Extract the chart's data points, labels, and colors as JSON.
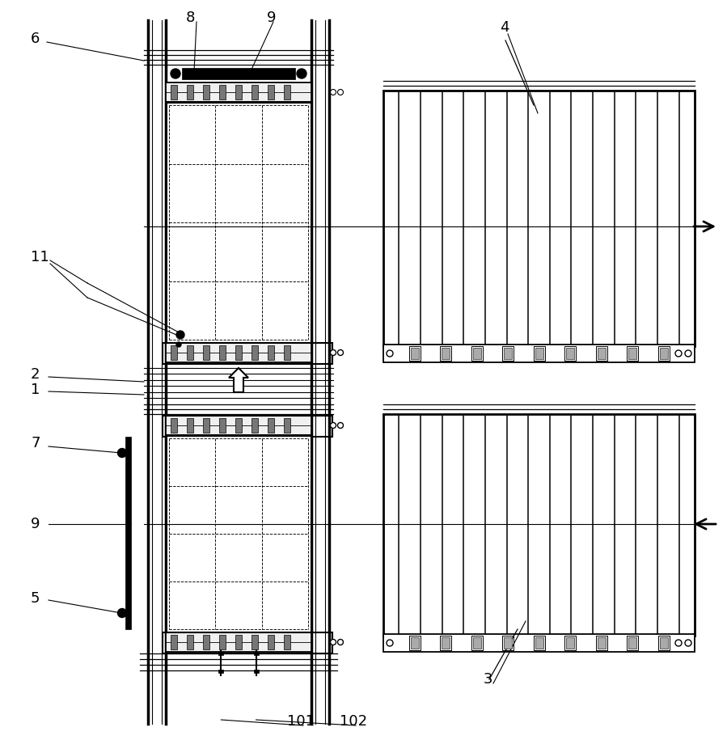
{
  "bg_color": "#ffffff",
  "line_color": "#000000",
  "fig_width": 8.99,
  "fig_height": 9.15,
  "dpi": 100
}
